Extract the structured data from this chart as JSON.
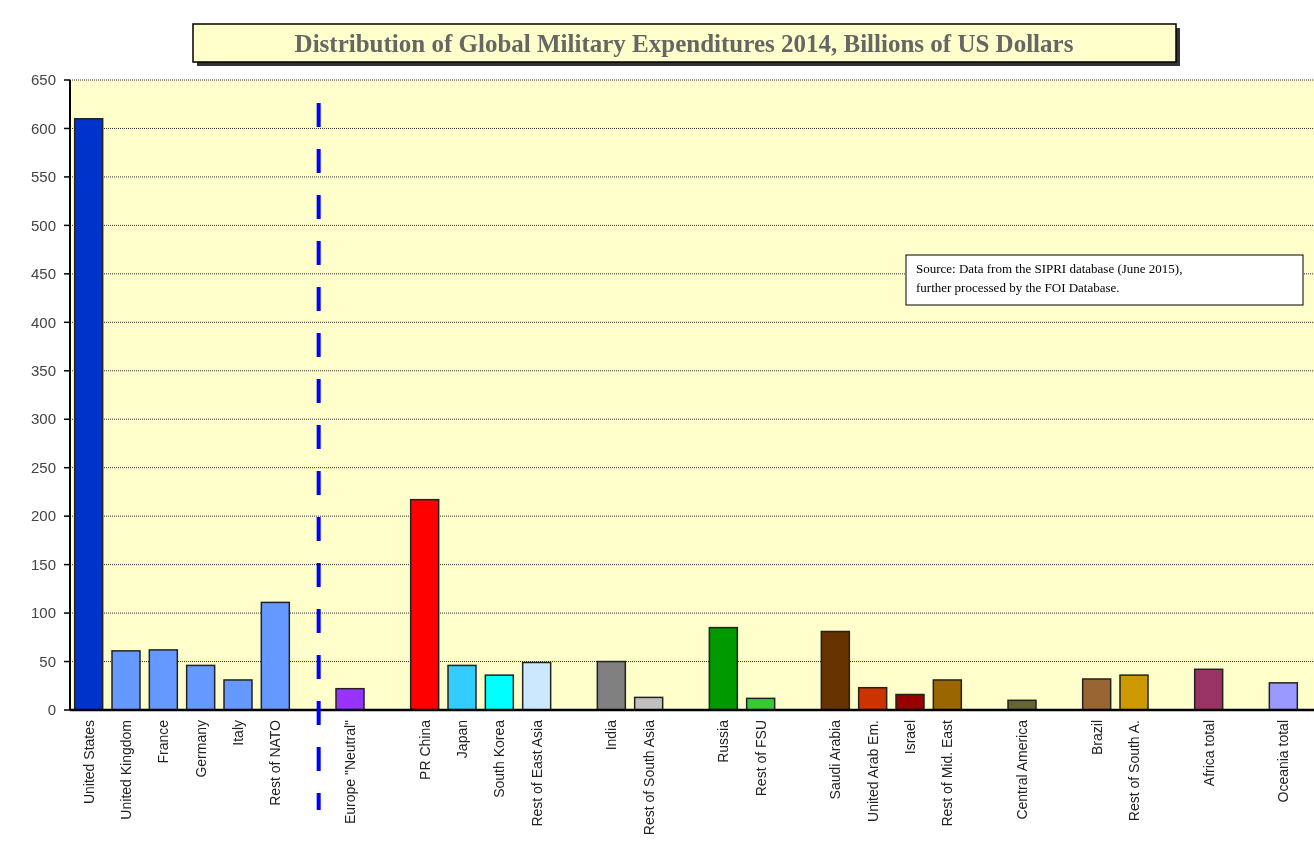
{
  "chart_data": {
    "type": "bar",
    "title": "Distribution of Global Military Expenditures 2014, Billions of US Dollars",
    "categories": [
      "United States",
      "United Kingdom",
      "France",
      "Germany",
      "Italy",
      "Rest of NATO",
      null,
      "Europe \"Neutral\"",
      null,
      "PR China",
      "Japan",
      "South Korea",
      "Rest of East Asia",
      null,
      "India",
      "Rest of South Asia",
      null,
      "Russia",
      "Rest of FSU",
      null,
      "Saudi Arabia",
      "United Arab Em.",
      "Israel",
      "Rest of Mid. East",
      null,
      "Central America",
      null,
      "Brazil",
      "Rest of South A.",
      null,
      "Africa total",
      null,
      "Oceania total"
    ],
    "values": [
      610,
      61,
      62,
      46,
      31,
      111,
      null,
      22,
      null,
      217,
      46,
      36,
      49,
      null,
      50,
      13,
      null,
      85,
      12,
      null,
      81,
      23,
      16,
      31,
      null,
      10,
      null,
      32,
      36,
      null,
      42,
      null,
      28
    ],
    "colors": [
      "#0033cc",
      "#6699ff",
      "#6699ff",
      "#6699ff",
      "#6699ff",
      "#6699ff",
      null,
      "#9933ff",
      null,
      "#ff0000",
      "#33ccff",
      "#00ffff",
      "#cce8ff",
      null,
      "#808080",
      "#c0c0c0",
      null,
      "#009900",
      "#33cc33",
      null,
      "#663300",
      "#cc3300",
      "#990000",
      "#996600",
      null,
      "#666633",
      null,
      "#996633",
      "#cc9900",
      null,
      "#993366",
      null,
      "#9999ff"
    ],
    "ylim": [
      0,
      650
    ],
    "yticks": [
      0,
      50,
      100,
      150,
      200,
      250,
      300,
      350,
      400,
      450,
      500,
      550,
      600,
      650
    ],
    "grid": "y",
    "annotations": [
      "Source: Data from the SIPRI database (June 2015), further processed by the FOI Database."
    ]
  }
}
